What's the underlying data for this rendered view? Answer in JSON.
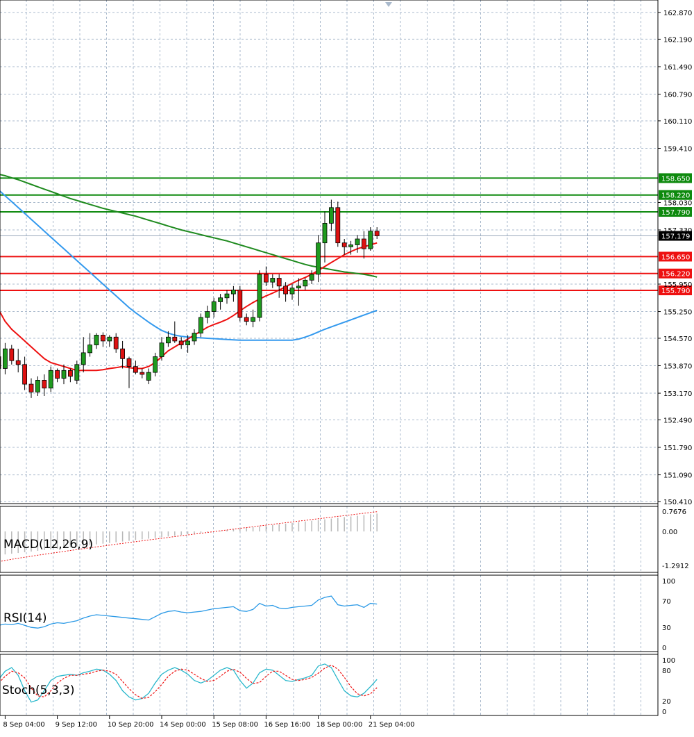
{
  "colors": {
    "background": "#ffffff",
    "grid": "#a9b9cc",
    "bull_candle": "#1f9a1f",
    "bear_candle": "#dd1111",
    "ma_fast": "#ee1111",
    "ma_mid": "#3399ee",
    "ma_slow": "#1e8a1e",
    "resistance": "#0e8a0e",
    "support": "#ee1111",
    "current_price_tag": "#000000",
    "macd_hist": "#b8b8b8",
    "macd_signal": "#ee1111",
    "rsi_line": "#2a99e6",
    "stoch_main": "#2ab8cc",
    "stoch_signal": "#ee1111"
  },
  "price_axis": {
    "ticks": [
      "162.870",
      "162.190",
      "161.490",
      "160.790",
      "160.110",
      "159.410",
      "158.030",
      "157.330",
      "155.950",
      "155.250",
      "154.570",
      "153.870",
      "153.170",
      "152.490",
      "151.790",
      "151.090",
      "150.410"
    ],
    "tick_values": [
      162.87,
      162.19,
      161.49,
      160.79,
      160.11,
      159.41,
      158.03,
      157.33,
      155.95,
      155.25,
      154.57,
      153.87,
      153.17,
      152.49,
      151.79,
      151.09,
      150.41
    ],
    "range": [
      150.35,
      163.0
    ]
  },
  "time_axis": {
    "labels": [
      "8 Sep 04:00",
      "9 Sep 12:00",
      "10 Sep 20:00",
      "14 Sep 00:00",
      "15 Sep 08:00",
      "16 Sep 16:00",
      "18 Sep 00:00",
      "21 Sep 04:00"
    ],
    "label_bar_index": [
      1,
      9,
      17,
      25,
      33,
      41,
      49,
      57
    ]
  },
  "levels": {
    "resistance": [
      {
        "label": "158.650",
        "value": 158.65
      },
      {
        "label": "158.220",
        "value": 158.22
      },
      {
        "label": "157.790",
        "value": 157.79
      }
    ],
    "support": [
      {
        "label": "156.650",
        "value": 156.65
      },
      {
        "label": "156.220",
        "value": 156.22
      },
      {
        "label": "155.790",
        "value": 155.79
      }
    ],
    "current_price": {
      "label": "157.179",
      "value": 157.179
    }
  },
  "chart_data": {
    "type": "candlestick",
    "candles": [
      [
        154.1,
        154.5,
        153.5,
        153.8
      ],
      [
        153.8,
        154.45,
        153.65,
        154.3
      ],
      [
        154.3,
        154.4,
        153.9,
        154.0
      ],
      [
        154.0,
        154.3,
        153.7,
        153.9
      ],
      [
        153.9,
        154.1,
        153.25,
        153.4
      ],
      [
        153.4,
        153.55,
        153.05,
        153.2
      ],
      [
        153.2,
        153.6,
        153.1,
        153.5
      ],
      [
        153.5,
        153.65,
        153.1,
        153.3
      ],
      [
        153.3,
        153.85,
        153.2,
        153.75
      ],
      [
        153.75,
        153.8,
        153.45,
        153.55
      ],
      [
        153.55,
        153.9,
        153.4,
        153.75
      ],
      [
        153.75,
        153.8,
        153.45,
        153.6
      ],
      [
        153.5,
        154.0,
        153.4,
        153.9
      ],
      [
        153.9,
        154.6,
        153.7,
        154.2
      ],
      [
        154.2,
        154.7,
        154.1,
        154.4
      ],
      [
        154.4,
        154.7,
        154.3,
        154.65
      ],
      [
        154.65,
        154.72,
        154.35,
        154.5
      ],
      [
        154.5,
        154.65,
        154.35,
        154.6
      ],
      [
        154.6,
        154.7,
        154.2,
        154.3
      ],
      [
        154.3,
        154.5,
        153.8,
        154.05
      ],
      [
        154.05,
        154.1,
        153.3,
        153.85
      ],
      [
        153.85,
        154.0,
        153.65,
        153.7
      ],
      [
        153.7,
        153.8,
        153.55,
        153.65
      ],
      [
        153.5,
        153.8,
        153.4,
        153.7
      ],
      [
        153.7,
        154.2,
        153.6,
        154.1
      ],
      [
        154.1,
        154.6,
        154.0,
        154.45
      ],
      [
        154.45,
        154.75,
        154.35,
        154.6
      ],
      [
        154.6,
        155.0,
        154.45,
        154.5
      ],
      [
        154.5,
        154.6,
        154.3,
        154.4
      ],
      [
        154.4,
        154.65,
        154.2,
        154.5
      ],
      [
        154.5,
        154.8,
        154.4,
        154.7
      ],
      [
        154.7,
        155.2,
        154.6,
        155.1
      ],
      [
        155.1,
        155.4,
        154.95,
        155.25
      ],
      [
        155.25,
        155.6,
        155.1,
        155.5
      ],
      [
        155.5,
        155.7,
        155.3,
        155.6
      ],
      [
        155.6,
        155.8,
        155.45,
        155.7
      ],
      [
        155.7,
        155.9,
        155.5,
        155.8
      ],
      [
        155.8,
        155.9,
        155.0,
        155.1
      ],
      [
        155.1,
        155.2,
        154.9,
        155.0
      ],
      [
        155.0,
        155.3,
        154.85,
        155.1
      ],
      [
        155.1,
        156.3,
        155.0,
        156.2
      ],
      [
        156.2,
        156.4,
        155.9,
        156.0
      ],
      [
        156.0,
        156.2,
        155.85,
        156.1
      ],
      [
        156.1,
        156.2,
        155.6,
        155.9
      ],
      [
        155.9,
        156.0,
        155.5,
        155.7
      ],
      [
        155.7,
        155.95,
        155.55,
        155.85
      ],
      [
        155.85,
        156.1,
        155.4,
        155.9
      ],
      [
        155.9,
        156.1,
        155.8,
        156.05
      ],
      [
        156.05,
        156.3,
        155.95,
        156.2
      ],
      [
        156.2,
        157.2,
        156.0,
        157.0
      ],
      [
        157.0,
        157.8,
        156.5,
        157.5
      ],
      [
        157.5,
        158.1,
        157.3,
        157.9
      ],
      [
        157.9,
        158.05,
        156.9,
        157.0
      ],
      [
        157.0,
        157.1,
        156.7,
        156.9
      ],
      [
        156.9,
        157.05,
        156.7,
        156.95
      ],
      [
        156.95,
        157.2,
        156.75,
        157.1
      ],
      [
        157.1,
        157.3,
        156.6,
        156.85
      ],
      [
        156.85,
        157.4,
        156.8,
        157.3
      ],
      [
        157.3,
        157.4,
        157.1,
        157.18
      ]
    ],
    "sma_fast": [
      155.3,
      155.0,
      154.8,
      154.65,
      154.5,
      154.35,
      154.2,
      154.05,
      153.95,
      153.9,
      153.85,
      153.8,
      153.75,
      153.75,
      153.75,
      153.75,
      153.77,
      153.8,
      153.82,
      153.85,
      153.82,
      153.8,
      153.8,
      153.85,
      153.95,
      154.1,
      154.25,
      154.35,
      154.45,
      154.55,
      154.65,
      154.75,
      154.85,
      154.92,
      154.98,
      155.05,
      155.15,
      155.27,
      155.38,
      155.48,
      155.57,
      155.65,
      155.72,
      155.8,
      155.88,
      155.97,
      156.05,
      156.12,
      156.2,
      156.3,
      156.4,
      156.5,
      156.6,
      156.7,
      156.78,
      156.85,
      156.9,
      156.95,
      157.0
    ],
    "sma_mid": [
      158.35,
      158.2,
      158.05,
      157.9,
      157.75,
      157.6,
      157.45,
      157.3,
      157.15,
      157.0,
      156.85,
      156.7,
      156.55,
      156.4,
      156.25,
      156.1,
      155.95,
      155.8,
      155.65,
      155.5,
      155.35,
      155.22,
      155.1,
      154.98,
      154.87,
      154.77,
      154.7,
      154.65,
      154.62,
      154.6,
      154.59,
      154.58,
      154.57,
      154.56,
      154.55,
      154.54,
      154.53,
      154.52,
      154.52,
      154.52,
      154.52,
      154.52,
      154.52,
      154.52,
      154.52,
      154.52,
      154.55,
      154.6,
      154.66,
      154.73,
      154.8,
      154.86,
      154.92,
      154.98,
      155.04,
      155.1,
      155.16,
      155.22,
      155.28
    ],
    "sma_slow": [
      158.75,
      158.71,
      158.66,
      158.61,
      158.55,
      158.49,
      158.43,
      158.37,
      158.31,
      158.25,
      158.19,
      158.13,
      158.08,
      158.03,
      157.98,
      157.93,
      157.88,
      157.84,
      157.8,
      157.76,
      157.72,
      157.68,
      157.63,
      157.58,
      157.53,
      157.48,
      157.43,
      157.38,
      157.33,
      157.29,
      157.25,
      157.21,
      157.17,
      157.13,
      157.09,
      157.05,
      157.0,
      156.95,
      156.9,
      156.85,
      156.8,
      156.75,
      156.7,
      156.65,
      156.6,
      156.55,
      156.5,
      156.45,
      156.41,
      156.38,
      156.35,
      156.32,
      156.29,
      156.26,
      156.24,
      156.22,
      156.2,
      156.17,
      156.13
    ],
    "macd": {
      "label": "MACD(12,26,9)",
      "ticks": [
        "0.7676",
        "0.00",
        "-1.2912"
      ],
      "range": [
        -1.2912,
        0.7676
      ]
    },
    "rsi": {
      "label": "RSI(14)",
      "ticks": [
        "100",
        "70",
        "30",
        "0"
      ],
      "values": [
        33,
        35,
        34,
        36,
        33,
        30,
        29,
        31,
        35,
        37,
        36,
        38,
        40,
        44,
        47,
        49,
        48,
        47,
        46,
        45,
        44,
        43,
        42,
        41,
        46,
        51,
        54,
        55,
        53,
        52,
        53,
        54,
        56,
        58,
        59,
        60,
        61,
        55,
        54,
        57,
        66,
        62,
        63,
        59,
        58,
        60,
        61,
        62,
        63,
        71,
        75,
        77,
        64,
        62,
        63,
        64,
        60,
        66,
        65
      ],
      "range": [
        0,
        100
      ]
    },
    "stoch": {
      "label": "Stoch(5,3,3)",
      "ticks": [
        "100",
        "80",
        "20",
        "0"
      ],
      "main": [
        62,
        78,
        85,
        70,
        40,
        18,
        22,
        40,
        60,
        68,
        70,
        72,
        70,
        75,
        78,
        82,
        80,
        72,
        60,
        40,
        28,
        22,
        25,
        35,
        55,
        72,
        80,
        85,
        80,
        72,
        60,
        55,
        60,
        70,
        80,
        85,
        80,
        60,
        45,
        55,
        75,
        82,
        80,
        70,
        60,
        58,
        62,
        65,
        70,
        88,
        92,
        85,
        62,
        40,
        30,
        28,
        35,
        48,
        62
      ],
      "signal": [
        55,
        68,
        78,
        75,
        65,
        45,
        30,
        28,
        40,
        55,
        64,
        70,
        70,
        72,
        74,
        78,
        80,
        78,
        72,
        58,
        44,
        32,
        25,
        27,
        38,
        52,
        68,
        78,
        82,
        80,
        72,
        64,
        58,
        60,
        68,
        78,
        82,
        76,
        64,
        54,
        56,
        68,
        78,
        78,
        70,
        62,
        60,
        62,
        66,
        74,
        84,
        90,
        82,
        66,
        48,
        34,
        30,
        34,
        46
      ]
    }
  }
}
